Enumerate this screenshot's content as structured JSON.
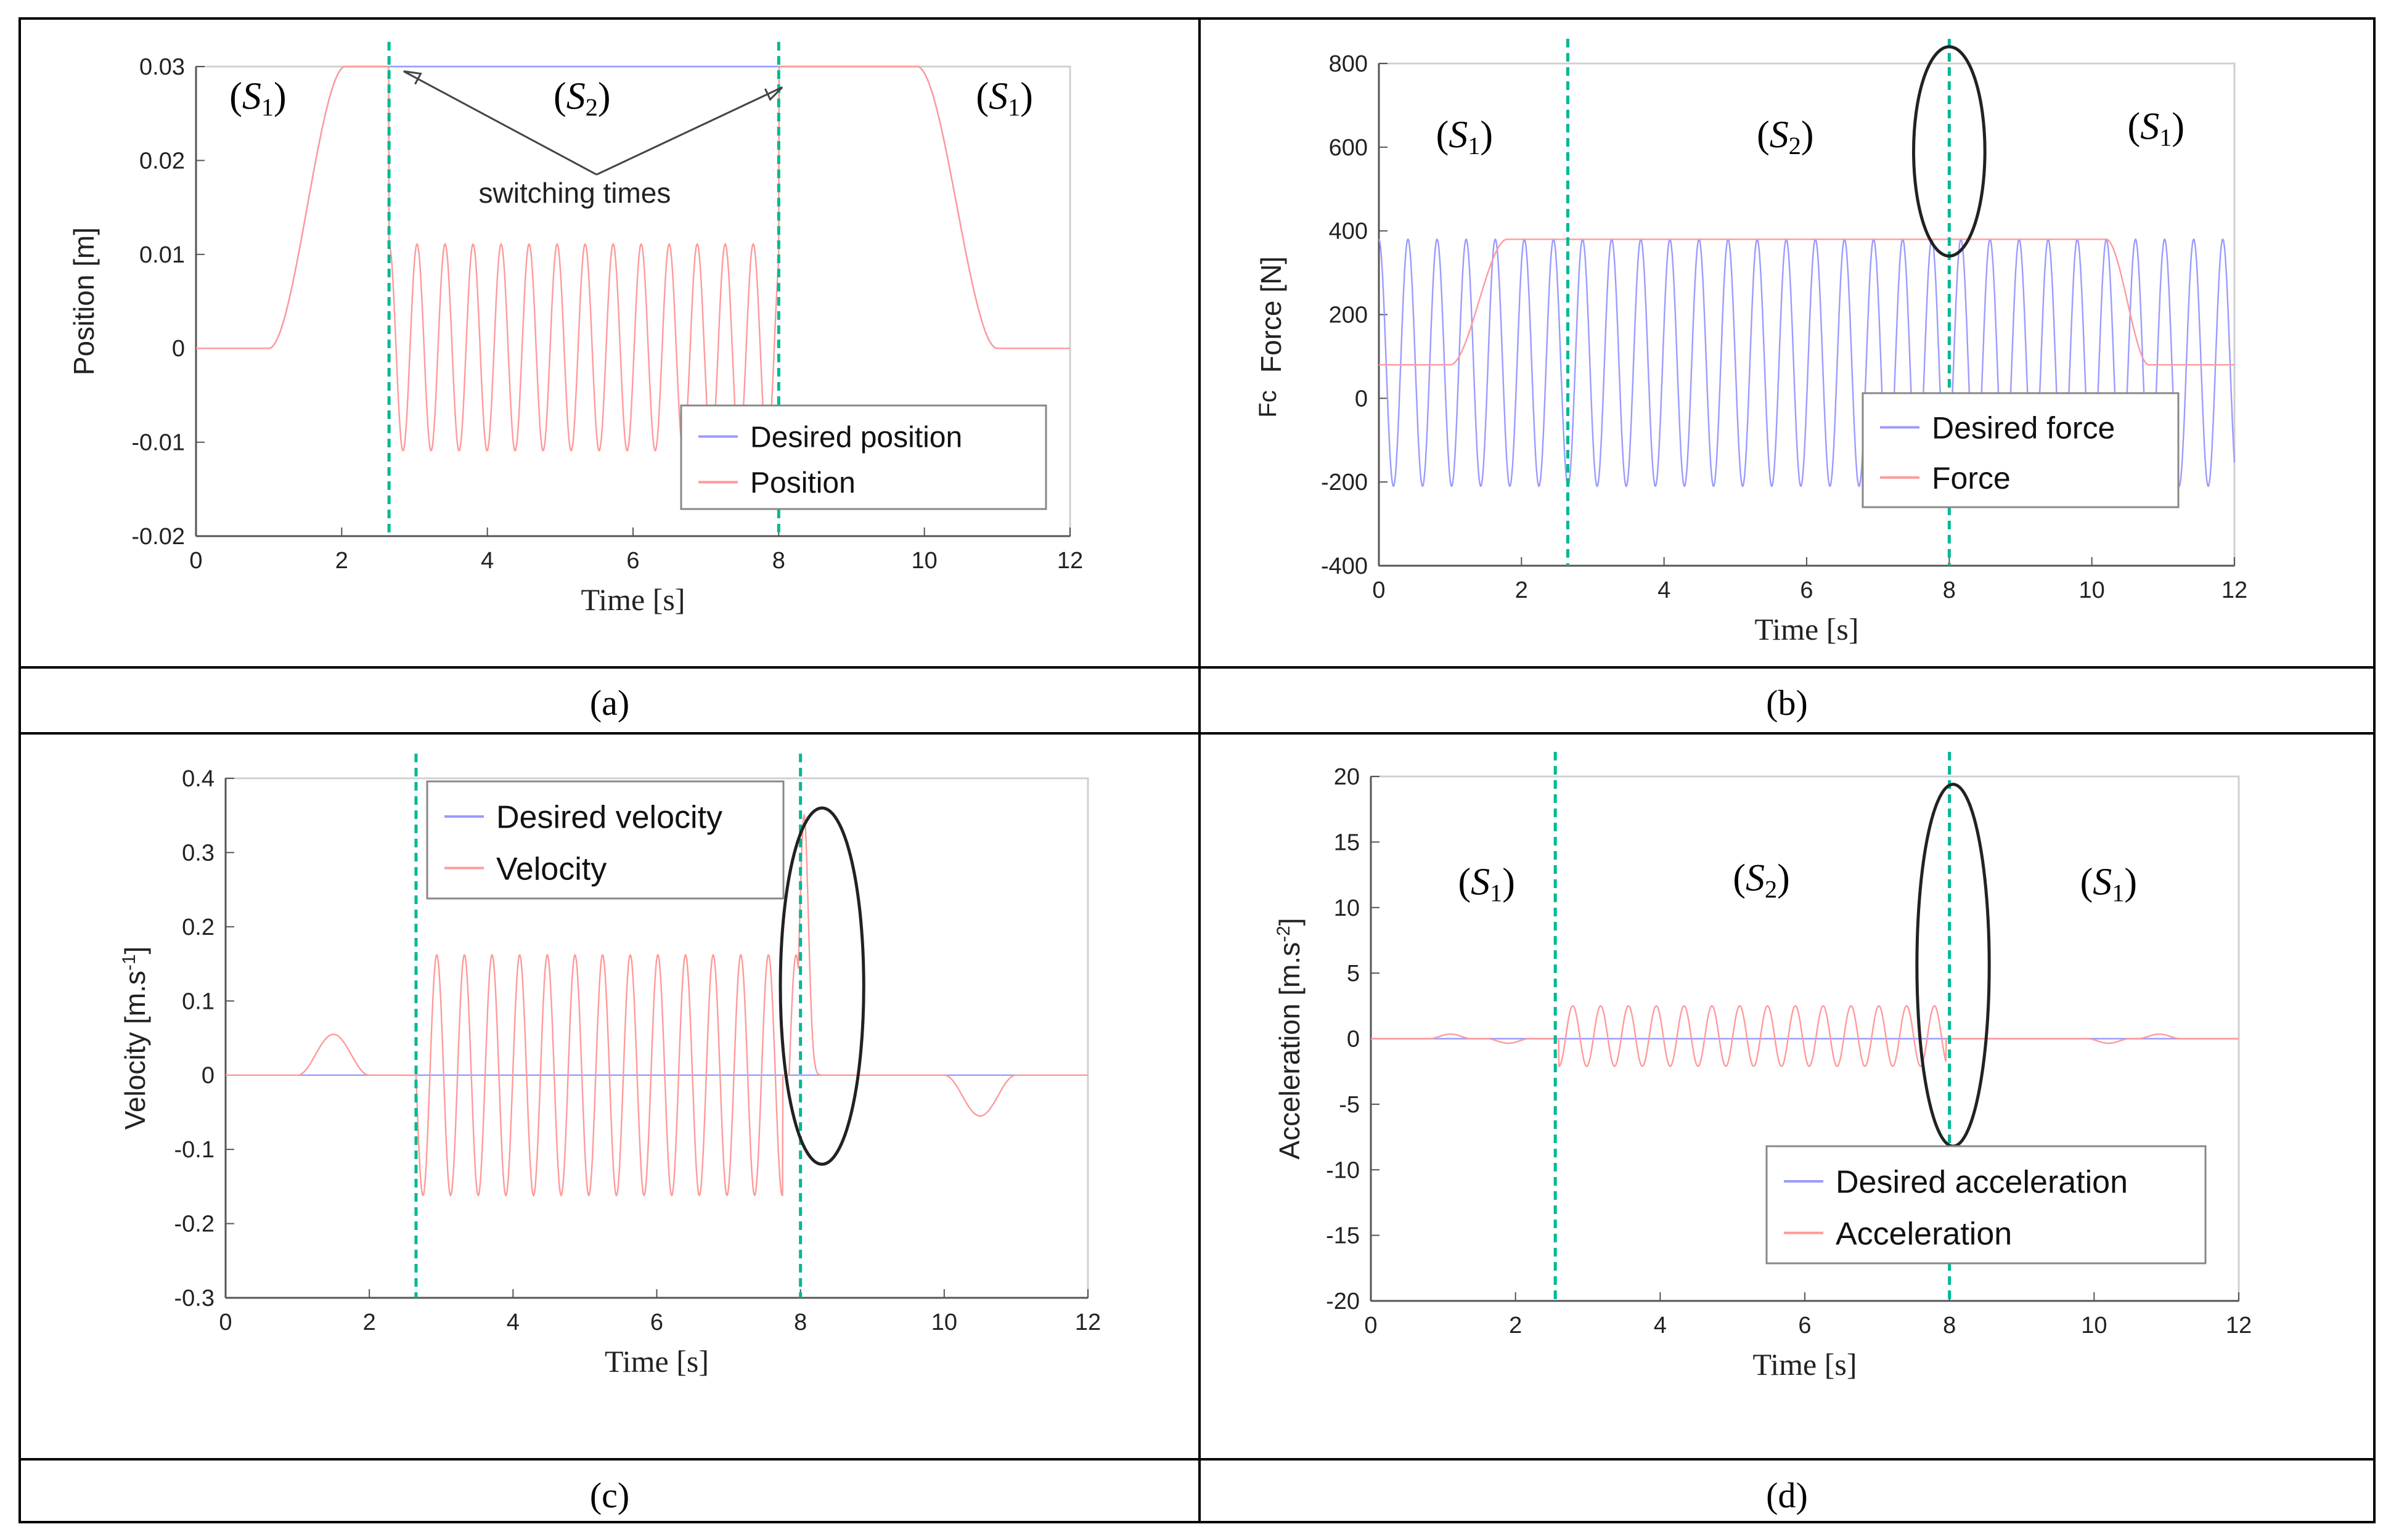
{
  "figure": {
    "panel_labels": [
      "(a)",
      "(b)",
      "(c)",
      "(d)"
    ],
    "colors": {
      "desired": "#9b9bff",
      "actual": "#ff9a9a",
      "switch": "#00b894",
      "frame": "#000000",
      "axis": "#555555"
    }
  },
  "chart_data": [
    {
      "id": "a",
      "type": "line",
      "title": "",
      "xlabel": "Time [s]",
      "ylabel": "Position [m]",
      "xlim": [
        0,
        12
      ],
      "ylim": [
        -0.02,
        0.03
      ],
      "xticks": [
        0,
        2,
        4,
        6,
        8,
        10,
        12
      ],
      "xtick_labels": [
        "0",
        "2",
        "4",
        "6",
        "8",
        "10",
        "12"
      ],
      "yticks": [
        -0.02,
        -0.01,
        0,
        0.01,
        0.02,
        0.03
      ],
      "ytick_labels": [
        "-0.02",
        "-0.01",
        "0",
        "0.01",
        "0.02",
        "0.03"
      ],
      "switching_times": [
        2.65,
        8.0
      ],
      "regions": [
        {
          "label": "(S1)",
          "x": 0.85,
          "y": 0.0255
        },
        {
          "label": "(S2)",
          "x": 5.3,
          "y": 0.0255
        },
        {
          "label": "(S1)",
          "x": 11.1,
          "y": 0.0255
        }
      ],
      "annotation": {
        "text": "switching times",
        "x": 5.2,
        "y": 0.0155,
        "arrow_from": [
          5.5,
          0.0185
        ],
        "arrow_targets": [
          [
            2.85,
            0.0295
          ],
          [
            8.05,
            0.0278
          ]
        ]
      },
      "ellipses": [],
      "legend": {
        "position": "lower-right",
        "entries": [
          "Desired position",
          "Position"
        ]
      },
      "series": [
        {
          "name": "Desired position",
          "role": "desired",
          "shape": "trapezoid",
          "base": 0,
          "level": 0.03,
          "t": [
            1.0,
            2.05,
            9.9,
            11.0
          ]
        },
        {
          "name": "Position",
          "role": "actual",
          "shape": "trapezoid_osc",
          "base": 0,
          "level": 0.03,
          "t": [
            1.0,
            2.05,
            9.9,
            11.0
          ],
          "osc": {
            "start": 2.65,
            "end": 8.0,
            "center": 0.0001,
            "amp": 0.011,
            "freq": 2.6,
            "phase": 1.57,
            "decay": 0.0
          }
        }
      ]
    },
    {
      "id": "b",
      "type": "line",
      "title": "",
      "xlabel": "Time [s]",
      "ylabel": "Force [N]",
      "ylabel_fragment": "Fc",
      "xlim": [
        0,
        12
      ],
      "ylim": [
        -400,
        800
      ],
      "xticks": [
        0,
        2,
        4,
        6,
        8,
        10,
        12
      ],
      "xtick_labels": [
        "0",
        "2",
        "4",
        "6",
        "8",
        "10",
        "12"
      ],
      "yticks": [
        -400,
        -200,
        0,
        200,
        400,
        600,
        800
      ],
      "ytick_labels": [
        "-400",
        "-200",
        "0",
        "200",
        "400",
        "600",
        "800"
      ],
      "switching_times": [
        2.65,
        8.0
      ],
      "regions": [
        {
          "label": "(S1)",
          "x": 1.2,
          "y": 600
        },
        {
          "label": "(S2)",
          "x": 5.7,
          "y": 600
        },
        {
          "label": "(S1)",
          "x": 10.9,
          "y": 620
        }
      ],
      "annotation": null,
      "ellipses": [
        {
          "cx": 8.0,
          "cy": 590,
          "rx": 0.5,
          "ry": 250
        }
      ],
      "legend": {
        "position": "lower-right",
        "entries": [
          "Desired force",
          "Force"
        ]
      },
      "series": [
        {
          "name": "Desired force",
          "role": "desired",
          "shape": "osc_full",
          "start": 0,
          "end": 12,
          "center": 85,
          "amp": 295,
          "freq": 2.45,
          "phase": 1.57
        },
        {
          "name": "Force",
          "role": "actual",
          "shape": "trapezoid",
          "base": 80,
          "level": 380,
          "t": [
            1.0,
            1.8,
            10.2,
            10.8
          ]
        }
      ]
    },
    {
      "id": "c",
      "type": "line",
      "title": "",
      "xlabel": "Time [s]",
      "ylabel": "Velocity [m.s-1]",
      "xlim": [
        0,
        12
      ],
      "ylim": [
        -0.3,
        0.4
      ],
      "xticks": [
        0,
        2,
        4,
        6,
        8,
        10,
        12
      ],
      "xtick_labels": [
        "0",
        "2",
        "4",
        "6",
        "8",
        "10",
        "12"
      ],
      "yticks": [
        -0.3,
        -0.2,
        -0.1,
        0,
        0.1,
        0.2,
        0.3,
        0.4
      ],
      "ytick_labels": [
        "-0.3",
        "-0.2",
        "-0.1",
        "0",
        "0.1",
        "0.2",
        "0.3",
        "0.4"
      ],
      "switching_times": [
        2.65,
        8.0
      ],
      "regions": [],
      "annotation": null,
      "ellipses": [
        {
          "cx": 8.3,
          "cy": 0.12,
          "rx": 0.58,
          "ry": 0.24
        }
      ],
      "legend": {
        "position": "upper-middle",
        "entries": [
          "Desired velocity",
          "Velocity"
        ]
      },
      "series": [
        {
          "name": "Desired velocity",
          "role": "desired",
          "shape": "flat",
          "value": 0
        },
        {
          "name": "Velocity",
          "role": "actual",
          "shape": "bumps_osc",
          "bumps": [
            {
              "c": 1.5,
              "w": 1.0,
              "a": 0.055
            },
            {
              "c": 10.5,
              "w": 1.0,
              "a": -0.055
            }
          ],
          "osc": {
            "start": 2.65,
            "end": 7.98,
            "center": 0.0,
            "amp": 0.162,
            "freq": 2.6,
            "phase": 3.14,
            "decay": 0.0
          },
          "spike": {
            "t": 8.05,
            "peak": 0.35,
            "width": 0.12
          }
        }
      ]
    },
    {
      "id": "d",
      "type": "line",
      "title": "",
      "xlabel": "Time [s]",
      "ylabel": "Acceleration [m.s-2]",
      "xlim": [
        0,
        12
      ],
      "ylim": [
        -20,
        20
      ],
      "xticks": [
        0,
        2,
        4,
        6,
        8,
        10,
        12
      ],
      "xtick_labels": [
        "0",
        "2",
        "4",
        "6",
        "8",
        "10",
        "12"
      ],
      "yticks": [
        -20,
        -15,
        -10,
        -5,
        0,
        5,
        10,
        15,
        20
      ],
      "ytick_labels": [
        "-20",
        "-15",
        "-10",
        "-5",
        "0",
        "5",
        "10",
        "15",
        "20"
      ],
      "switching_times": [
        2.55,
        8.0
      ],
      "regions": [
        {
          "label": "(S1)",
          "x": 1.6,
          "y": 11
        },
        {
          "label": "(S2)",
          "x": 5.4,
          "y": 11.3
        },
        {
          "label": "(S1)",
          "x": 10.2,
          "y": 11
        }
      ],
      "annotation": null,
      "ellipses": [
        {
          "cx": 8.05,
          "cy": 5.6,
          "rx": 0.5,
          "ry": 13.8
        }
      ],
      "legend": {
        "position": "lower-right",
        "entries": [
          "Desired acceleration",
          "Acceleration"
        ]
      },
      "series": [
        {
          "name": "Desired acceleration",
          "role": "desired",
          "shape": "flat",
          "value": 0
        },
        {
          "name": "Acceleration",
          "role": "actual",
          "shape": "bumps_osc",
          "bumps": [
            {
              "c": 1.1,
              "w": 0.6,
              "a": 0.35
            },
            {
              "c": 1.9,
              "w": 0.6,
              "a": -0.35
            },
            {
              "c": 10.2,
              "w": 0.6,
              "a": -0.35
            },
            {
              "c": 10.9,
              "w": 0.6,
              "a": 0.35
            }
          ],
          "osc": {
            "start": 2.6,
            "end": 7.95,
            "center": 0.2,
            "amp": 2.3,
            "freq": 2.6,
            "phase": 4.71,
            "decay": 0.0
          },
          "spike": null
        }
      ]
    }
  ]
}
